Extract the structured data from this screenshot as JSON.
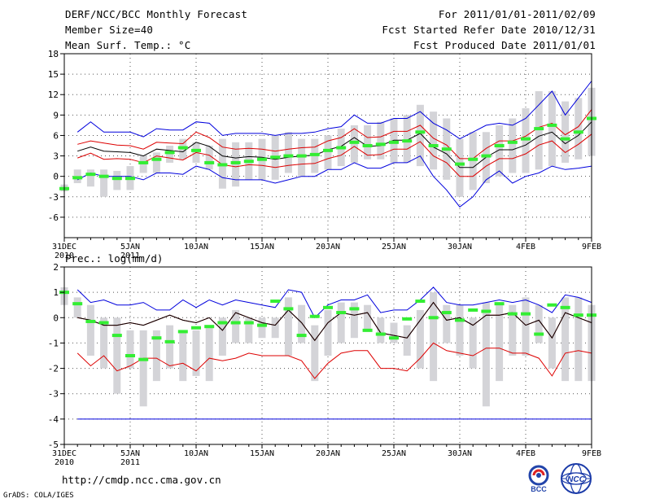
{
  "header": {
    "title": "DERF/NCC/BCC Monthly Forecast",
    "member": "Member Size=40",
    "variable_temp": "Mean Surf. Temp.: °C",
    "period": "For 2011/01/01-2011/02/09",
    "started": "Fcst Started Refer Date 2010/12/31",
    "produced": "Fcst Produced Date 2011/01/01"
  },
  "footer": {
    "url": "http://cmdp.ncc.cma.gov.cn",
    "credit": "GrADS: COLA/IGES",
    "logo_left": "BCC",
    "logo_right": "NCC"
  },
  "colors": {
    "box": "#d4d4d8",
    "median": "#33ee33",
    "mean": "#000000",
    "inner": "#dd0000",
    "outer": "#0000dd",
    "grid": "#555555"
  },
  "chart_data": [
    {
      "type": "box",
      "title": "Mean Surf. Temp.: °C",
      "ylim": [
        -9,
        18
      ],
      "yticks": [
        -6,
        -3,
        0,
        3,
        6,
        9,
        12,
        15,
        18
      ],
      "xlim": [
        0,
        40
      ],
      "xticks": [
        {
          "x": 0,
          "label": "31DEC",
          "sub": "2010"
        },
        {
          "x": 5,
          "label": "5JAN",
          "sub": "2011"
        },
        {
          "x": 10,
          "label": "10JAN",
          "sub": ""
        },
        {
          "x": 15,
          "label": "15JAN",
          "sub": ""
        },
        {
          "x": 20,
          "label": "20JAN",
          "sub": ""
        },
        {
          "x": 25,
          "label": "25JAN",
          "sub": ""
        },
        {
          "x": 30,
          "label": "30JAN",
          "sub": ""
        },
        {
          "x": 35,
          "label": "4FEB",
          "sub": ""
        },
        {
          "x": 40,
          "label": "9FEB",
          "sub": ""
        }
      ],
      "box_low": [
        -2.2,
        -1.0,
        -1.5,
        -3.0,
        -2.0,
        -2.0,
        0.5,
        0.5,
        2.0,
        2.5,
        2.0,
        1.0,
        -1.8,
        -1.5,
        -0.5,
        -0.5,
        -0.5,
        0.5,
        0.0,
        0.5,
        1.0,
        1.5,
        2.0,
        2.5,
        2.5,
        2.0,
        2.0,
        1.5,
        1.0,
        -0.5,
        -3.0,
        -2.0,
        -1.0,
        0.0,
        0.5,
        0.5,
        1.0,
        1.5,
        2.0,
        2.5,
        3.0
      ],
      "box_high": [
        -1.2,
        1.0,
        1.0,
        1.0,
        0.8,
        1.5,
        3.0,
        3.5,
        4.5,
        5.5,
        5.0,
        4.5,
        5.5,
        5.0,
        5.0,
        5.5,
        6.0,
        6.5,
        5.5,
        5.5,
        6.0,
        7.0,
        7.5,
        7.5,
        8.0,
        8.5,
        9.0,
        10.5,
        9.5,
        8.5,
        5.5,
        6.5,
        6.5,
        7.5,
        8.5,
        10.0,
        12.5,
        12.5,
        11.0,
        11.5,
        13.0
      ],
      "median": [
        -1.8,
        -0.2,
        0.3,
        0.0,
        -0.3,
        -0.3,
        2.0,
        2.5,
        3.5,
        4.2,
        3.8,
        2.0,
        1.7,
        2.0,
        2.2,
        2.5,
        2.8,
        3.0,
        3.0,
        3.2,
        3.8,
        4.2,
        5.0,
        4.5,
        4.7,
        5.0,
        5.2,
        6.5,
        4.5,
        4.0,
        1.8,
        2.5,
        3.0,
        4.5,
        5.0,
        5.5,
        7.0,
        7.5,
        5.5,
        6.5,
        8.5
      ],
      "mean": [
        null,
        3.7,
        4.3,
        3.7,
        3.6,
        3.5,
        3.0,
        4.0,
        3.8,
        3.6,
        5.0,
        4.4,
        3.0,
        2.7,
        2.9,
        2.8,
        2.5,
        2.8,
        3.0,
        3.1,
        3.9,
        4.4,
        5.7,
        4.4,
        4.5,
        5.3,
        5.3,
        6.3,
        4.3,
        3.3,
        1.3,
        1.3,
        2.8,
        3.9,
        3.9,
        4.6,
        5.9,
        6.5,
        4.8,
        6.0,
        8.0
      ],
      "inner_upper": [
        null,
        4.7,
        5.2,
        4.9,
        4.6,
        4.5,
        4.0,
        5.0,
        4.9,
        4.8,
        6.5,
        5.7,
        4.3,
        4.0,
        4.1,
        4.0,
        3.7,
        4.0,
        4.2,
        4.3,
        5.2,
        5.7,
        7.0,
        5.7,
        5.8,
        6.6,
        6.6,
        7.5,
        5.6,
        4.6,
        2.6,
        2.6,
        4.1,
        5.2,
        5.2,
        5.9,
        7.2,
        7.8,
        6.1,
        7.3,
        9.8
      ],
      "inner_lower": [
        null,
        2.7,
        3.4,
        2.5,
        2.6,
        2.5,
        2.0,
        3.0,
        2.7,
        2.4,
        3.5,
        3.1,
        1.7,
        1.4,
        1.7,
        1.6,
        1.3,
        1.6,
        1.8,
        1.9,
        2.6,
        3.1,
        4.4,
        3.1,
        3.2,
        4.0,
        4.0,
        5.1,
        3.0,
        2.0,
        0.0,
        0.0,
        1.5,
        2.6,
        2.6,
        3.3,
        4.6,
        5.2,
        3.5,
        4.7,
        6.2
      ],
      "outer_upper": [
        null,
        6.5,
        8.0,
        6.5,
        6.5,
        6.5,
        5.8,
        7.0,
        6.8,
        6.8,
        8.0,
        7.8,
        6.0,
        6.3,
        6.3,
        6.3,
        6.0,
        6.3,
        6.3,
        6.5,
        7.0,
        7.3,
        9.0,
        7.8,
        7.8,
        8.5,
        8.5,
        9.5,
        7.8,
        6.8,
        5.5,
        6.5,
        7.5,
        7.8,
        7.5,
        8.5,
        10.5,
        12.5,
        9.0,
        11.5,
        14.0
      ],
      "outer_lower": [
        null,
        -0.5,
        0.5,
        0.0,
        0.0,
        0.0,
        -0.5,
        0.5,
        0.5,
        0.3,
        1.5,
        1.0,
        -0.2,
        -0.5,
        -0.5,
        -0.5,
        -1.0,
        -0.5,
        0.0,
        0.0,
        1.0,
        1.0,
        2.0,
        1.2,
        1.2,
        2.0,
        2.0,
        3.0,
        0.0,
        -2.0,
        -4.5,
        -3.0,
        -0.5,
        0.8,
        -1.0,
        0.0,
        0.5,
        1.5,
        1.0,
        1.2,
        1.5
      ]
    },
    {
      "type": "box",
      "title": "Prec.: log(mm/d)",
      "ylim": [
        -5,
        2
      ],
      "yticks": [
        -5,
        -4,
        -3,
        -2,
        -1,
        0,
        1,
        2
      ],
      "xlim": [
        0,
        40
      ],
      "xticks": [
        {
          "x": 0,
          "label": "31DEC",
          "sub": "2010"
        },
        {
          "x": 5,
          "label": "5JAN",
          "sub": "2011"
        },
        {
          "x": 10,
          "label": "10JAN",
          "sub": ""
        },
        {
          "x": 15,
          "label": "15JAN",
          "sub": ""
        },
        {
          "x": 20,
          "label": "20JAN",
          "sub": ""
        },
        {
          "x": 25,
          "label": "25JAN",
          "sub": ""
        },
        {
          "x": 30,
          "label": "30JAN",
          "sub": ""
        },
        {
          "x": 35,
          "label": "4FEB",
          "sub": ""
        },
        {
          "x": 40,
          "label": "9FEB",
          "sub": ""
        }
      ],
      "box_low": [
        0.5,
        0.0,
        -1.5,
        -2.0,
        -3.0,
        -2.0,
        -3.5,
        -2.5,
        -2.0,
        -2.5,
        -2.3,
        -2.5,
        -1.5,
        -1.0,
        -1.0,
        -0.8,
        -0.8,
        -1.5,
        -1.0,
        -2.5,
        -1.5,
        -1.0,
        -0.8,
        -0.5,
        -1.0,
        -1.0,
        -1.5,
        -2.0,
        -2.5,
        -1.0,
        -1.5,
        -2.0,
        -3.5,
        -2.5,
        -1.5,
        -1.5,
        -1.0,
        -2.0,
        -2.5,
        -2.5,
        -2.5
      ],
      "box_high": [
        1.2,
        0.8,
        0.5,
        0.0,
        0.0,
        -0.5,
        -0.5,
        -0.5,
        -0.3,
        -0.5,
        -0.5,
        -0.3,
        0.0,
        0.3,
        0.0,
        0.0,
        0.0,
        0.8,
        0.5,
        -0.3,
        0.3,
        0.6,
        0.6,
        0.5,
        0.0,
        -0.2,
        -0.3,
        0.3,
        1.0,
        0.5,
        0.5,
        0.0,
        0.6,
        0.5,
        0.5,
        0.8,
        0.5,
        0.0,
        0.8,
        0.8,
        0.5
      ],
      "median": [
        1.0,
        0.55,
        -0.15,
        -0.2,
        -0.7,
        -1.5,
        -1.65,
        -0.8,
        -0.95,
        -0.55,
        -0.4,
        -0.35,
        -0.2,
        -0.2,
        -0.2,
        -0.3,
        0.65,
        0.35,
        -0.7,
        0.05,
        0.4,
        0.2,
        0.35,
        -0.5,
        -0.65,
        -0.8,
        -0.05,
        0.65,
        0.0,
        0.2,
        -0.1,
        0.3,
        0.25,
        0.55,
        0.15,
        0.15,
        -0.65,
        0.5,
        0.4,
        0.1,
        0.1
      ],
      "mean": [
        null,
        0.0,
        -0.1,
        -0.3,
        -0.3,
        -0.2,
        -0.3,
        -0.1,
        0.1,
        -0.1,
        -0.2,
        0.0,
        -0.5,
        0.2,
        0.0,
        -0.2,
        -0.3,
        0.3,
        -0.2,
        -0.9,
        -0.2,
        0.2,
        0.1,
        0.2,
        -0.6,
        -0.7,
        -0.8,
        -0.1,
        0.6,
        -0.1,
        0.0,
        -0.3,
        0.1,
        0.1,
        0.2,
        -0.3,
        -0.1,
        -0.8,
        0.2,
        0.0,
        -0.2
      ],
      "inner_upper": [
        null,
        0.0,
        -0.1,
        -0.3,
        -0.3,
        -0.2,
        -0.3,
        -0.1,
        0.1,
        -0.1,
        -0.2,
        0.0,
        -0.5,
        0.2,
        0.0,
        -0.2,
        -0.3,
        0.3,
        -0.2,
        -0.9,
        -0.2,
        0.2,
        0.1,
        0.2,
        -0.6,
        -0.7,
        -0.8,
        -0.1,
        0.6,
        -0.1,
        0.0,
        -0.3,
        0.1,
        0.1,
        0.2,
        -0.3,
        -0.1,
        -0.8,
        0.2,
        0.0,
        -0.2
      ],
      "inner_lower": [
        null,
        -1.4,
        -1.9,
        -1.5,
        -2.1,
        -1.9,
        -1.6,
        -1.6,
        -1.9,
        -1.8,
        -2.1,
        -1.6,
        -1.7,
        -1.6,
        -1.4,
        -1.5,
        -1.5,
        -1.5,
        -1.7,
        -2.4,
        -1.8,
        -1.4,
        -1.3,
        -1.3,
        -2.0,
        -2.0,
        -2.1,
        -1.6,
        -1.0,
        -1.3,
        -1.4,
        -1.5,
        -1.2,
        -1.2,
        -1.4,
        -1.4,
        -1.6,
        -2.3,
        -1.4,
        -1.3,
        -1.4
      ],
      "outer_upper": [
        null,
        1.1,
        0.6,
        0.7,
        0.5,
        0.5,
        0.6,
        0.3,
        0.3,
        0.7,
        0.4,
        0.7,
        0.5,
        0.7,
        0.6,
        0.5,
        0.4,
        1.1,
        1.0,
        0.0,
        0.5,
        0.7,
        0.7,
        0.9,
        0.2,
        0.3,
        0.3,
        0.7,
        1.2,
        0.6,
        0.5,
        0.5,
        0.6,
        0.7,
        0.6,
        0.7,
        0.5,
        0.2,
        0.9,
        0.8,
        0.6
      ],
      "outer_lower": [
        null,
        -4.0,
        -4.0,
        -4.0,
        -4.0,
        -4.0,
        -4.0,
        -4.0,
        -4.0,
        -4.0,
        -4.0,
        -4.0,
        -4.0,
        -4.0,
        -4.0,
        -4.0,
        -4.0,
        -4.0,
        -4.0,
        -4.0,
        -4.0,
        -4.0,
        -4.0,
        -4.0,
        -4.0,
        -4.0,
        -4.0,
        -4.0,
        -4.0,
        -4.0,
        -4.0,
        -4.0,
        -4.0,
        -4.0,
        -4.0,
        -4.0,
        -4.0,
        -4.0,
        -4.0,
        -4.0,
        -4.0
      ]
    }
  ]
}
